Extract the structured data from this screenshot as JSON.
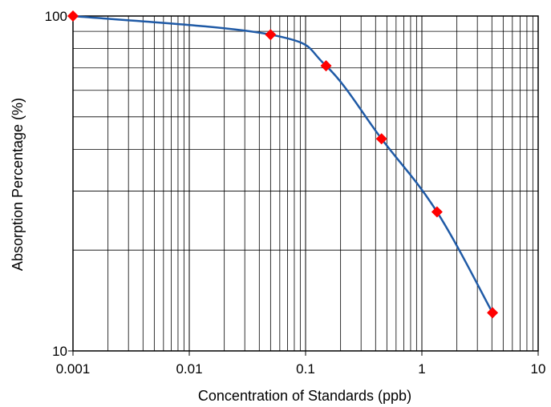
{
  "chart_data": {
    "type": "line",
    "title": "",
    "xlabel": "Concentration of Standards (ppb)",
    "ylabel": "Absorption Percentage (%)",
    "x_scale": "log",
    "y_scale": "log",
    "xlim": [
      0.001,
      10
    ],
    "ylim": [
      10,
      100
    ],
    "grid": true,
    "x_ticks": [
      "0.001",
      "0.01",
      "0.1",
      "1",
      "10"
    ],
    "y_ticks": [
      "10",
      "100"
    ],
    "series": [
      {
        "x": [
          0.001,
          0.05,
          0.15,
          0.45,
          1.35,
          4.05
        ],
        "y": [
          100,
          88,
          71,
          43,
          26,
          13
        ],
        "line_color": "#1f5aa6",
        "marker": "diamond",
        "marker_color": "#ff0000"
      }
    ]
  }
}
